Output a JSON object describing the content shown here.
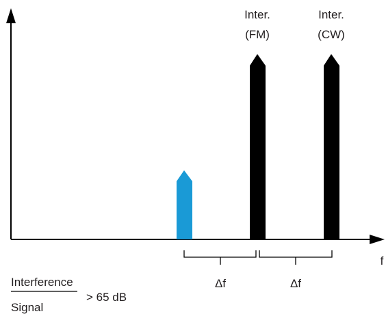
{
  "colors": {
    "axis": "#000000",
    "signal": "#1a9ad6",
    "interferer": "#000000",
    "text": "#231f20"
  },
  "axis": {
    "x_label": "f"
  },
  "spikes": [
    {
      "id": "signal",
      "label_line1": "",
      "label_line2": "",
      "color_key": "signal",
      "level": "low"
    },
    {
      "id": "interferer-fm",
      "label_line1": "Inter.",
      "label_line2": "(FM)",
      "color_key": "interferer",
      "level": "high"
    },
    {
      "id": "interferer-cw",
      "label_line1": "Inter.",
      "label_line2": "(CW)",
      "color_key": "interferer",
      "level": "high"
    }
  ],
  "spacing": [
    {
      "id": "delta-1",
      "label": "Δf"
    },
    {
      "id": "delta-2",
      "label": "Δf"
    }
  ],
  "ratio": {
    "numerator": "Interference",
    "denominator": "Signal",
    "condition": "> 65 dB"
  }
}
